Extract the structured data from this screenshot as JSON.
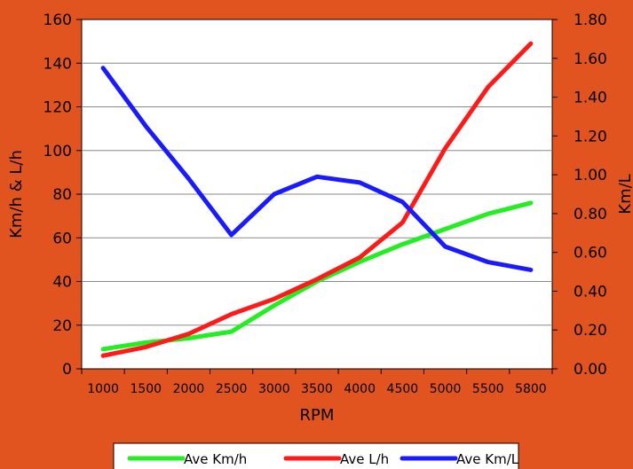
{
  "chart_data": {
    "type": "line",
    "xlabel": "RPM",
    "ylabel_left": "Km/h & L/h",
    "ylabel_right": "Km/L",
    "categories": [
      "1000",
      "1500",
      "2000",
      "2500",
      "3000",
      "3500",
      "4000",
      "4500",
      "5000",
      "5500",
      "5800"
    ],
    "left_axis": {
      "min": 0,
      "max": 160,
      "step": 20,
      "tick_labels": [
        "0",
        "20",
        "40",
        "60",
        "80",
        "100",
        "120",
        "140",
        "160"
      ]
    },
    "right_axis": {
      "min": 0,
      "max": 1.8,
      "step": 0.2,
      "tick_labels": [
        "0.00",
        "0.20",
        "0.40",
        "0.60",
        "0.80",
        "1.00",
        "1.20",
        "1.40",
        "1.60",
        "1.80"
      ]
    },
    "grid": true,
    "legend_position": "bottom",
    "series": [
      {
        "name": "Ave Km/h",
        "axis": "left",
        "color": "#22EE22",
        "values": [
          9,
          12,
          14,
          17,
          29,
          40,
          49,
          57,
          64,
          71,
          76
        ]
      },
      {
        "name": "Ave L/h",
        "axis": "left",
        "color": "#FF1A1A",
        "values": [
          6,
          10,
          16,
          25,
          32,
          41,
          51,
          67,
          101,
          129,
          149
        ]
      },
      {
        "name": "Ave Km/L",
        "axis": "right",
        "color": "#1A1AFF",
        "values": [
          1.55,
          1.25,
          0.98,
          0.69,
          0.9,
          0.99,
          0.96,
          0.86,
          0.63,
          0.55,
          0.51
        ]
      }
    ]
  }
}
